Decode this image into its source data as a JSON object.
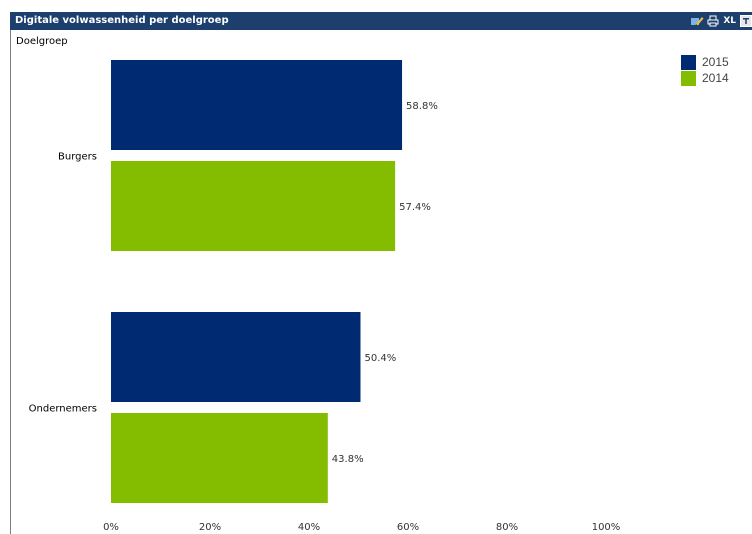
{
  "panel": {
    "title": "Digitale volwassenheid per doelgroep",
    "dimension_label": "Doelgroep",
    "toolbar": {
      "edit_icon": "pencil-icon",
      "print_icon": "print-icon",
      "excel_label": "XL",
      "export_icon": "export-icon"
    }
  },
  "colors": {
    "titlebar": "#1c3f6e",
    "series_2015": "#002a71",
    "series_2014": "#84bd00"
  },
  "chart_data": {
    "type": "bar",
    "orientation": "horizontal",
    "title": "Digitale volwassenheid per doelgroep",
    "ylabel": "Doelgroep",
    "xlabel": "",
    "categories": [
      "Burgers",
      "Ondernemers"
    ],
    "series": [
      {
        "name": "2015",
        "color": "#002a71",
        "values": [
          58.8,
          50.4
        ],
        "labels": [
          "58.8%",
          "50.4%"
        ]
      },
      {
        "name": "2014",
        "color": "#84bd00",
        "values": [
          57.4,
          43.8
        ],
        "labels": [
          "57.4%",
          "43.8%"
        ]
      }
    ],
    "xlim": [
      0,
      100
    ],
    "x_ticks": [
      0,
      20,
      40,
      60,
      80,
      100
    ],
    "x_tick_labels": [
      "0%",
      "20%",
      "40%",
      "60%",
      "80%",
      "100%"
    ],
    "grid": false,
    "legend": "top-right"
  }
}
